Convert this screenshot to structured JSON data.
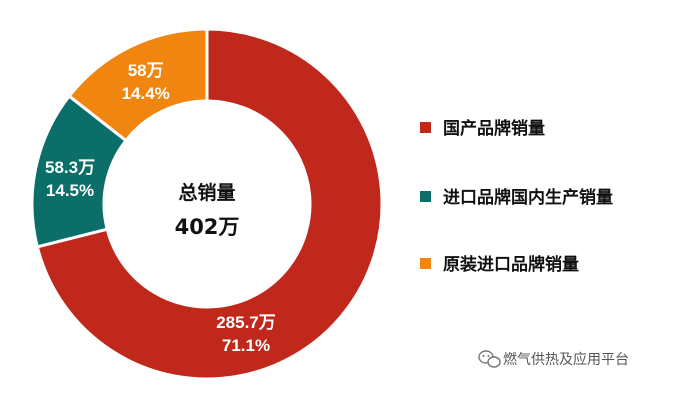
{
  "chart_data": {
    "type": "pie",
    "categories": [
      "国产品牌销量",
      "进口品牌国内生产销量",
      "原装进口品牌销量"
    ],
    "values": [
      285.7,
      58.3,
      58
    ],
    "value_labels": [
      "285.7万",
      "58.3万",
      "58万"
    ],
    "percent_labels": [
      "71.1%",
      "14.5%",
      "14.4%"
    ],
    "colors": [
      "#c0281c",
      "#0b6e68",
      "#f0850f"
    ],
    "center": {
      "title": "总销量",
      "total": "402万"
    },
    "legend": {
      "placement": "right",
      "entries": [
        "国产品牌销量",
        "进口品牌国内生产销量",
        "原装进口品牌销量"
      ]
    }
  },
  "watermark": {
    "text": "燃气供热及应用平台"
  }
}
